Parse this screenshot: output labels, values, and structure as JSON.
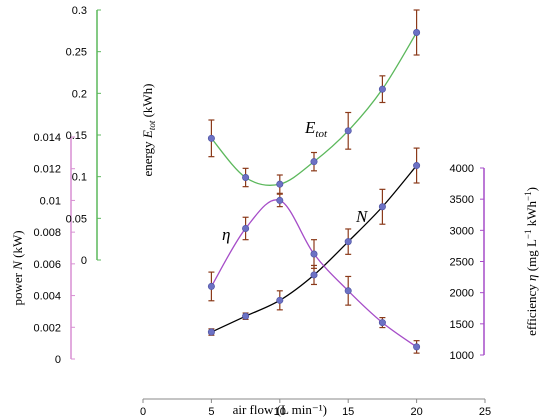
{
  "chart_data": {
    "type": "line",
    "xlabel": "air flow (L min⁻¹)",
    "x_ticks": [
      0,
      5,
      10,
      15,
      20,
      25
    ],
    "xlim": [
      0,
      25
    ],
    "grid": false,
    "legend": "none",
    "axes": {
      "power": {
        "label": "power N (kW)",
        "ylim": [
          0,
          0.014
        ],
        "ticks": [
          0,
          0.002,
          0.004,
          0.006,
          0.008,
          0.01,
          0.012,
          0.014
        ],
        "tick_labels": [
          "0",
          "0.002",
          "0.004",
          "0.006",
          "0.008",
          "0.01",
          "0.012",
          "0.014"
        ],
        "color": "#d88fd3"
      },
      "energy": {
        "label": "energy E_tot (kWh)",
        "ylim": [
          0,
          0.3
        ],
        "ticks": [
          0,
          0.05,
          0.1,
          0.15,
          0.2,
          0.25,
          0.3
        ],
        "tick_labels": [
          "0",
          "0.05",
          "0.1",
          "0.15",
          "0.2",
          "0.25",
          "0.3"
        ],
        "color": "#5cb85c"
      },
      "efficiency": {
        "label": "efficiency η (mg L⁻¹ kWh⁻¹)",
        "ylim": [
          1000,
          4000
        ],
        "ticks": [
          1000,
          1500,
          2000,
          2500,
          3000,
          3500,
          4000
        ],
        "tick_labels": [
          "1000",
          "1500",
          "2000",
          "2500",
          "3000",
          "3500",
          "4000"
        ],
        "color": "#a64dc8"
      }
    },
    "series": [
      {
        "name": "E_tot",
        "axis": "energy",
        "line_color": "#5cb85c",
        "x": [
          5,
          7.5,
          10,
          12.5,
          15,
          17.5,
          20
        ],
        "y": [
          0.146,
          0.099,
          0.091,
          0.118,
          0.155,
          0.205,
          0.273
        ],
        "err": [
          0.022,
          0.011,
          0.011,
          0.011,
          0.022,
          0.016,
          0.027
        ]
      },
      {
        "name": "N",
        "axis": "power",
        "line_color": "#000000",
        "x": [
          5,
          7.5,
          10,
          12.5,
          15,
          17.5,
          20
        ],
        "y": [
          0.0017,
          0.0027,
          0.0037,
          0.0053,
          0.0074,
          0.0096,
          0.0122
        ],
        "err": [
          0.0002,
          0.0002,
          0.0006,
          0.0006,
          0.0008,
          0.0011,
          0.0011
        ]
      },
      {
        "name": "η",
        "axis": "efficiency",
        "line_color": "#a64dc8",
        "x": [
          5,
          7.5,
          10,
          12.5,
          15,
          17.5,
          20
        ],
        "y": [
          2100,
          3030,
          3480,
          2620,
          2030,
          1520,
          1130
        ],
        "err": [
          230,
          180,
          100,
          230,
          230,
          80,
          100
        ]
      }
    ],
    "marker_color": "#6c71c4",
    "errorbar_color": "#8b3a1a",
    "annotations": [
      {
        "text": "E",
        "sub": "tot",
        "series": "E_tot"
      },
      {
        "text": "N",
        "series": "N"
      },
      {
        "text": "η",
        "series": "η"
      }
    ]
  }
}
